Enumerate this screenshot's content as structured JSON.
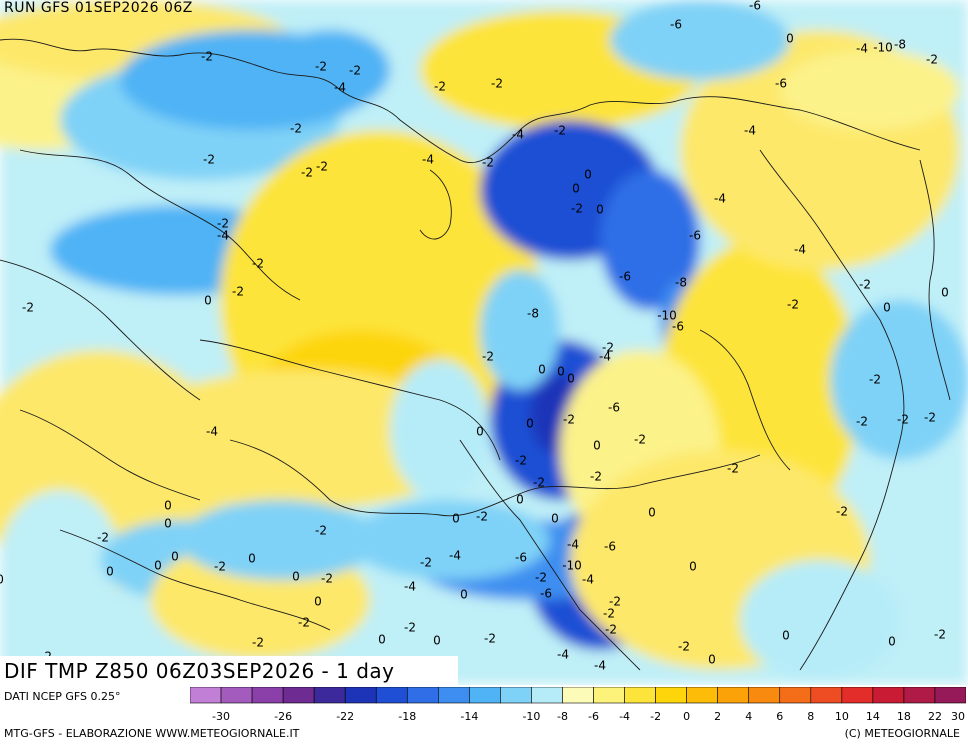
{
  "header": {
    "run": "RUN GFS 01SEP2026 06Z"
  },
  "title": "DIF TMP Z850 06Z03SEP2026 - 1 day",
  "source": "DATI NCEP GFS 0.25°",
  "credits": "MTG-GFS - ELABORAZIONE WWW.METEOGIORNALE.IT",
  "copyright": "(C) METEOGIORNALE",
  "legend": {
    "ticks": [
      "-30",
      "-26",
      "-22",
      "-18",
      "-14",
      "-10",
      "-8",
      "-6",
      "-4",
      "-2",
      "0",
      "2",
      "4",
      "6",
      "8",
      "10",
      "14",
      "18",
      "22",
      "30"
    ],
    "colors": [
      "#c27fd6",
      "#a35bbd",
      "#8a40a8",
      "#6e2b92",
      "#3c2a9c",
      "#1e34b8",
      "#1f4fd4",
      "#2f6ee6",
      "#3d8ef0",
      "#4fb3f5",
      "#7fd2f7",
      "#b6ecf8",
      "#fcfcb8",
      "#fdf27a",
      "#fde43a",
      "#fdd50a",
      "#fcbc08",
      "#fba208",
      "#f88a10",
      "#f46e1a",
      "#ee4c22",
      "#e22d2a",
      "#c91c34",
      "#b01a46",
      "#961a5a"
    ],
    "color_meaning": "temperature difference at 850 hPa (°C)"
  },
  "map_labels": [
    "-2",
    "-2",
    "-2",
    "-4",
    "-2",
    "-2",
    "-2",
    "-2",
    "-2",
    "-2",
    "-4",
    "-2",
    "0",
    "-2",
    "-2",
    "-2",
    "-4",
    "-2",
    "-4",
    "-2",
    "0",
    "0",
    "-2",
    "0",
    "-4",
    "-6",
    "-6",
    "-8",
    "-10",
    "-6",
    "-8",
    "-2",
    "-4",
    "-2",
    "0",
    "0",
    "0",
    "-6",
    "-2",
    "0",
    "0",
    "-2",
    "0",
    "-2",
    "-2",
    "0",
    "-2",
    "0",
    "-2",
    "0",
    "0",
    "-2",
    "-4",
    "-6",
    "-4",
    "-6",
    "-10",
    "-4",
    "-6",
    "-2",
    "-2",
    "-2",
    "-2",
    "0",
    "-2",
    "-4",
    "-4",
    "-2",
    "0",
    "0",
    "-2",
    "-2",
    "-2",
    "-2",
    "0",
    "-2",
    "-2",
    "-2",
    "-2",
    "0",
    "-6",
    "-4",
    "-4",
    "-2",
    "-10",
    "-4",
    "-8",
    "0",
    "-6",
    "-6",
    "-4",
    "0",
    "0",
    "-2",
    "0",
    "0",
    "0",
    "-2",
    "0",
    "0",
    "-2",
    "0",
    "-2",
    "0",
    "-2",
    "0",
    "-4",
    "-2",
    "-2",
    "0",
    "0",
    "-2",
    "0",
    "-2",
    "-2",
    "-2",
    "-2",
    "-2",
    "0",
    "0",
    "0",
    "0"
  ]
}
